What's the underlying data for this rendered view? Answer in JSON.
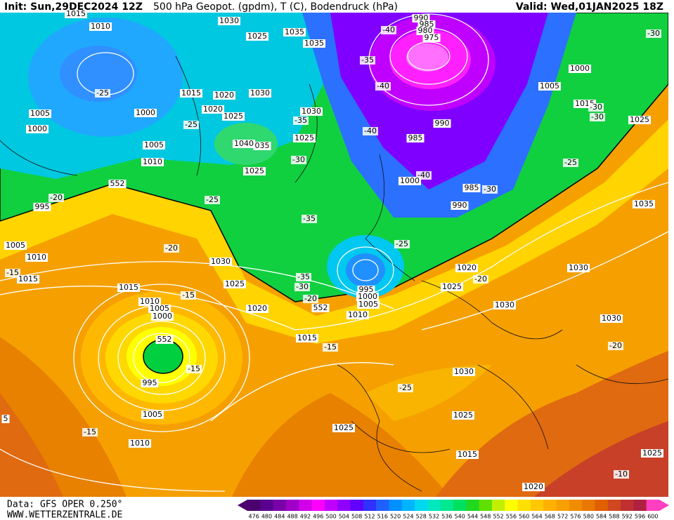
{
  "header": {
    "init": "Init: Sun,29DEC2024 12Z",
    "title": "500 hPa Geopot. (gpdm), T (C), Bodendruck (hPa)",
    "valid": "Valid: Wed,01JAN2025 18Z"
  },
  "footer": {
    "data": "Data: GFS OPER 0.250°",
    "site": "WWW.WETTERZENTRALE.DE"
  },
  "map_labels": [
    "1015",
    "1010",
    "1030",
    "1025",
    "1035",
    "1035",
    "990",
    "985",
    "980",
    "975",
    "-40",
    "-30",
    "-35",
    "-40",
    "-25",
    "1015",
    "1020",
    "1030",
    "1000",
    "1005",
    "1015",
    "-30",
    "1005",
    "1000",
    "1020",
    "1025",
    "1030",
    "-35",
    "990",
    "-30",
    "1025",
    "1000",
    "-25",
    "-40",
    "985",
    "1025",
    "1005",
    "1040",
    "035",
    "-30",
    "1010",
    "-25",
    "1025",
    "-40",
    "1000",
    "552",
    "985",
    "-30",
    "-20",
    "-25",
    "990",
    "1035",
    "995",
    "-35",
    "-25",
    "1005",
    "-20",
    "1010",
    "1030",
    "1020",
    "1030",
    "-15",
    "1015",
    "-35",
    "-20",
    "1025",
    "-30",
    "1025",
    "1015",
    "995",
    "-15",
    "1000",
    "-20",
    "1010",
    "1005",
    "1005",
    "1020",
    "552",
    "1030",
    "1010",
    "1000",
    "1030",
    "1015",
    "552",
    "-15",
    "-20",
    "-15",
    "1030",
    "995",
    "-25",
    "1005",
    "1025",
    "5",
    "1025",
    "-15",
    "1010",
    "1015",
    "1025",
    "-10",
    "1020"
  ],
  "colorbar": {
    "levels": [
      476,
      480,
      484,
      488,
      492,
      496,
      500,
      504,
      508,
      512,
      516,
      520,
      524,
      528,
      532,
      536,
      540,
      544,
      548,
      552,
      556,
      560,
      564,
      568,
      572,
      576,
      580,
      584,
      588,
      592,
      596,
      600
    ],
    "colors": [
      "#4b0070",
      "#5a0090",
      "#7a00a8",
      "#a000c8",
      "#d000e8",
      "#ff00ff",
      "#c000ff",
      "#9000ff",
      "#6000ff",
      "#3030ff",
      "#2060ff",
      "#0090ff",
      "#00b4ff",
      "#00d8f0",
      "#00e8c0",
      "#00e890",
      "#00e060",
      "#20d820",
      "#60e000",
      "#c0f000",
      "#ffff00",
      "#ffe000",
      "#ffc800",
      "#ffb000",
      "#f8a000",
      "#f08c00",
      "#e87800",
      "#e06000",
      "#d04820",
      "#c03030",
      "#b02040",
      "#ff40c0"
    ]
  }
}
